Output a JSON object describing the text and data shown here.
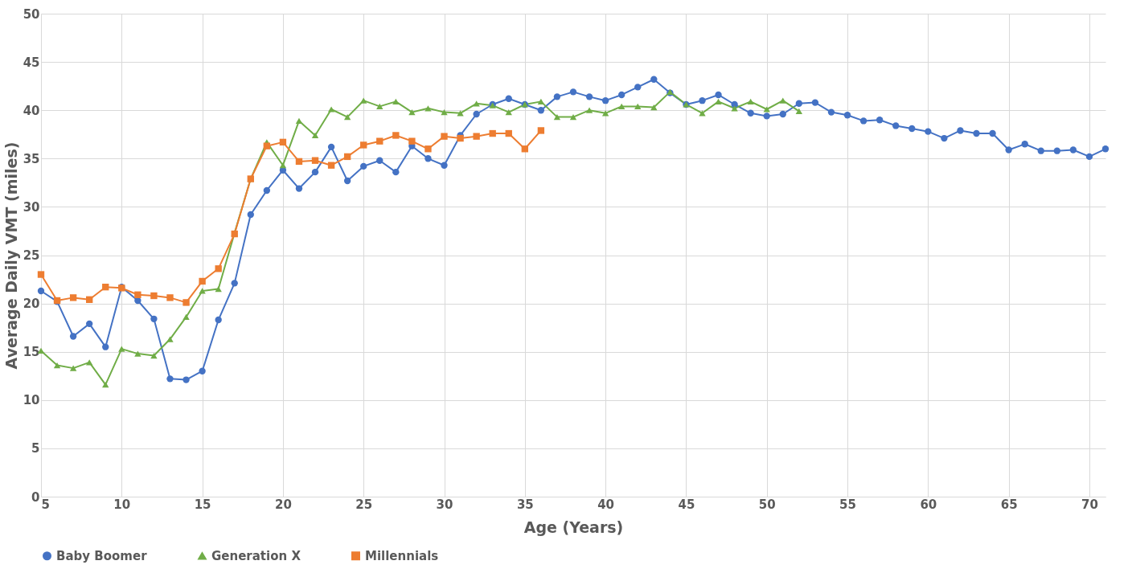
{
  "chart_data": {
    "type": "line",
    "xlabel": "Age (Years)",
    "ylabel": "Average Daily VMT (miles)",
    "xlim": [
      5,
      71
    ],
    "xticks": [
      5,
      10,
      15,
      20,
      25,
      30,
      35,
      40,
      45,
      50,
      55,
      60,
      65,
      70
    ],
    "ylim": [
      0,
      50
    ],
    "yticks": [
      0,
      5,
      10,
      15,
      20,
      25,
      30,
      35,
      40,
      45,
      50
    ],
    "grid": true,
    "legend": "bottom",
    "series": [
      {
        "name": "Baby Boomer",
        "color": "#4472c4",
        "marker": "circle",
        "x": [
          5,
          6,
          7,
          8,
          9,
          10,
          11,
          12,
          13,
          14,
          15,
          16,
          17,
          18,
          19,
          20,
          21,
          22,
          23,
          24,
          25,
          26,
          27,
          28,
          29,
          30,
          31,
          32,
          33,
          34,
          35,
          36,
          37,
          38,
          39,
          40,
          41,
          42,
          43,
          44,
          45,
          46,
          47,
          48,
          49,
          50,
          51,
          52,
          53,
          54,
          55,
          56,
          57,
          58,
          59,
          60,
          61,
          62,
          63,
          64,
          65,
          66,
          67,
          68,
          69,
          70,
          71
        ],
        "values": [
          21.3,
          20.2,
          16.6,
          17.9,
          15.5,
          21.7,
          20.3,
          18.4,
          12.2,
          12.1,
          13.0,
          18.3,
          22.1,
          29.2,
          31.7,
          33.8,
          31.9,
          33.6,
          36.2,
          32.7,
          34.2,
          34.8,
          33.6,
          36.3,
          35.0,
          34.3,
          37.4,
          39.6,
          40.6,
          41.2,
          40.6,
          40.0,
          41.4,
          41.9,
          41.4,
          41.0,
          41.6,
          42.4,
          43.2,
          41.8,
          40.6,
          41.0,
          41.6,
          40.6,
          39.7,
          39.4,
          39.6,
          40.7,
          40.8,
          39.8,
          39.5,
          38.9,
          39.0,
          38.4,
          38.1,
          37.8,
          37.1,
          37.9,
          37.6,
          37.6,
          35.9,
          36.5,
          35.8,
          35.8,
          35.9,
          35.2,
          36.0
        ]
      },
      {
        "name": "Generation X",
        "color": "#70ad47",
        "marker": "triangle",
        "x": [
          5,
          6,
          7,
          8,
          9,
          10,
          11,
          12,
          13,
          14,
          15,
          16,
          17,
          18,
          19,
          20,
          21,
          22,
          23,
          24,
          25,
          26,
          27,
          28,
          29,
          30,
          31,
          32,
          33,
          34,
          35,
          36,
          37,
          38,
          39,
          40,
          41,
          42,
          43,
          44,
          45,
          46,
          47,
          48,
          49,
          50,
          51,
          52
        ],
        "values": [
          15.1,
          13.6,
          13.3,
          13.9,
          11.6,
          15.3,
          14.8,
          14.6,
          16.3,
          18.6,
          21.3,
          21.5,
          27.3,
          32.9,
          36.7,
          34.3,
          38.9,
          37.4,
          40.1,
          39.3,
          41.0,
          40.4,
          40.9,
          39.8,
          40.2,
          39.8,
          39.7,
          40.7,
          40.5,
          39.8,
          40.6,
          40.9,
          39.3,
          39.3,
          40.0,
          39.7,
          40.4,
          40.4,
          40.3,
          41.9,
          40.6,
          39.7,
          40.9,
          40.2,
          40.9,
          40.1,
          41.0,
          39.9
        ]
      },
      {
        "name": "Millennials",
        "color": "#ed7d31",
        "marker": "square",
        "x": [
          5,
          6,
          7,
          8,
          9,
          10,
          11,
          12,
          13,
          14,
          15,
          16,
          17,
          18,
          19,
          20,
          21,
          22,
          23,
          24,
          25,
          26,
          27,
          28,
          29,
          30,
          31,
          32,
          33,
          34,
          35,
          36
        ],
        "values": [
          23.0,
          20.3,
          20.6,
          20.4,
          21.7,
          21.6,
          20.9,
          20.8,
          20.6,
          20.1,
          22.3,
          23.6,
          27.2,
          32.9,
          36.3,
          36.7,
          34.7,
          34.8,
          34.3,
          35.2,
          36.4,
          36.8,
          37.4,
          36.8,
          36.0,
          37.3,
          37.1,
          37.3,
          37.6,
          37.6,
          36.0,
          37.9
        ]
      }
    ]
  }
}
